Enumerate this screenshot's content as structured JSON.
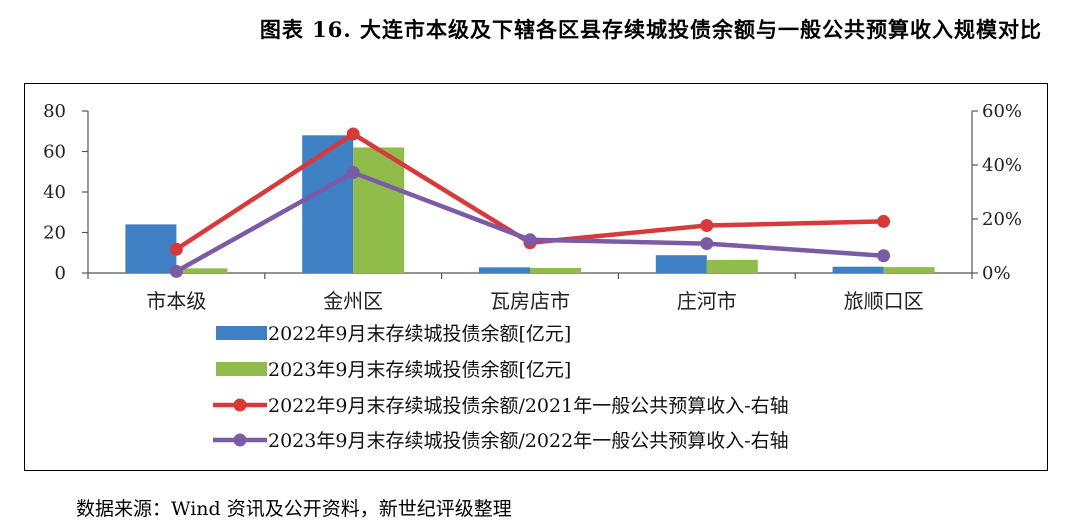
{
  "title": "图表 16. 大连市本级及下辖各区县存续城投债余额与一般公共预算收入规模对比",
  "source": "数据来源：Wind 资讯及公开资料，新世纪评级整理",
  "colors": {
    "bar1": "#3f7fc4",
    "bar2": "#8fbc4a",
    "line1": "#d63a3a",
    "line2": "#7b5aa6",
    "axis": "#555555"
  },
  "chart_data": {
    "type": "bar",
    "categories": [
      "市本级",
      "金州区",
      "瓦房店市",
      "庄河市",
      "旅顺口区"
    ],
    "left_axis": {
      "ylim": [
        0,
        80
      ],
      "ticks": [
        "0",
        "20",
        "40",
        "60",
        "80"
      ]
    },
    "right_axis": {
      "ylim": [
        0,
        60
      ],
      "ticks": [
        "0%",
        "20%",
        "40%",
        "60%"
      ]
    },
    "series": [
      {
        "name": "2022年9月末存续城投债余额[亿元]",
        "kind": "bar",
        "axis": "left",
        "values": [
          24,
          68,
          2.8,
          8.8,
          3.1
        ]
      },
      {
        "name": "2023年9月末存续城投债余额[亿元]",
        "kind": "bar",
        "axis": "left",
        "values": [
          2.3,
          62,
          2.5,
          6.5,
          2.9
        ]
      },
      {
        "name": "2022年9月末存续城投债余额/2021年一般公共预算收入-右轴",
        "kind": "line",
        "axis": "right",
        "values": [
          8.8,
          51.5,
          11.2,
          17.6,
          19.1
        ]
      },
      {
        "name": "2023年9月末存续城投债余额/2022年一般公共预算收入-右轴",
        "kind": "line",
        "axis": "right",
        "values": [
          0.6,
          37.2,
          12.3,
          10.9,
          6.4
        ]
      }
    ],
    "legend": "bottom"
  }
}
